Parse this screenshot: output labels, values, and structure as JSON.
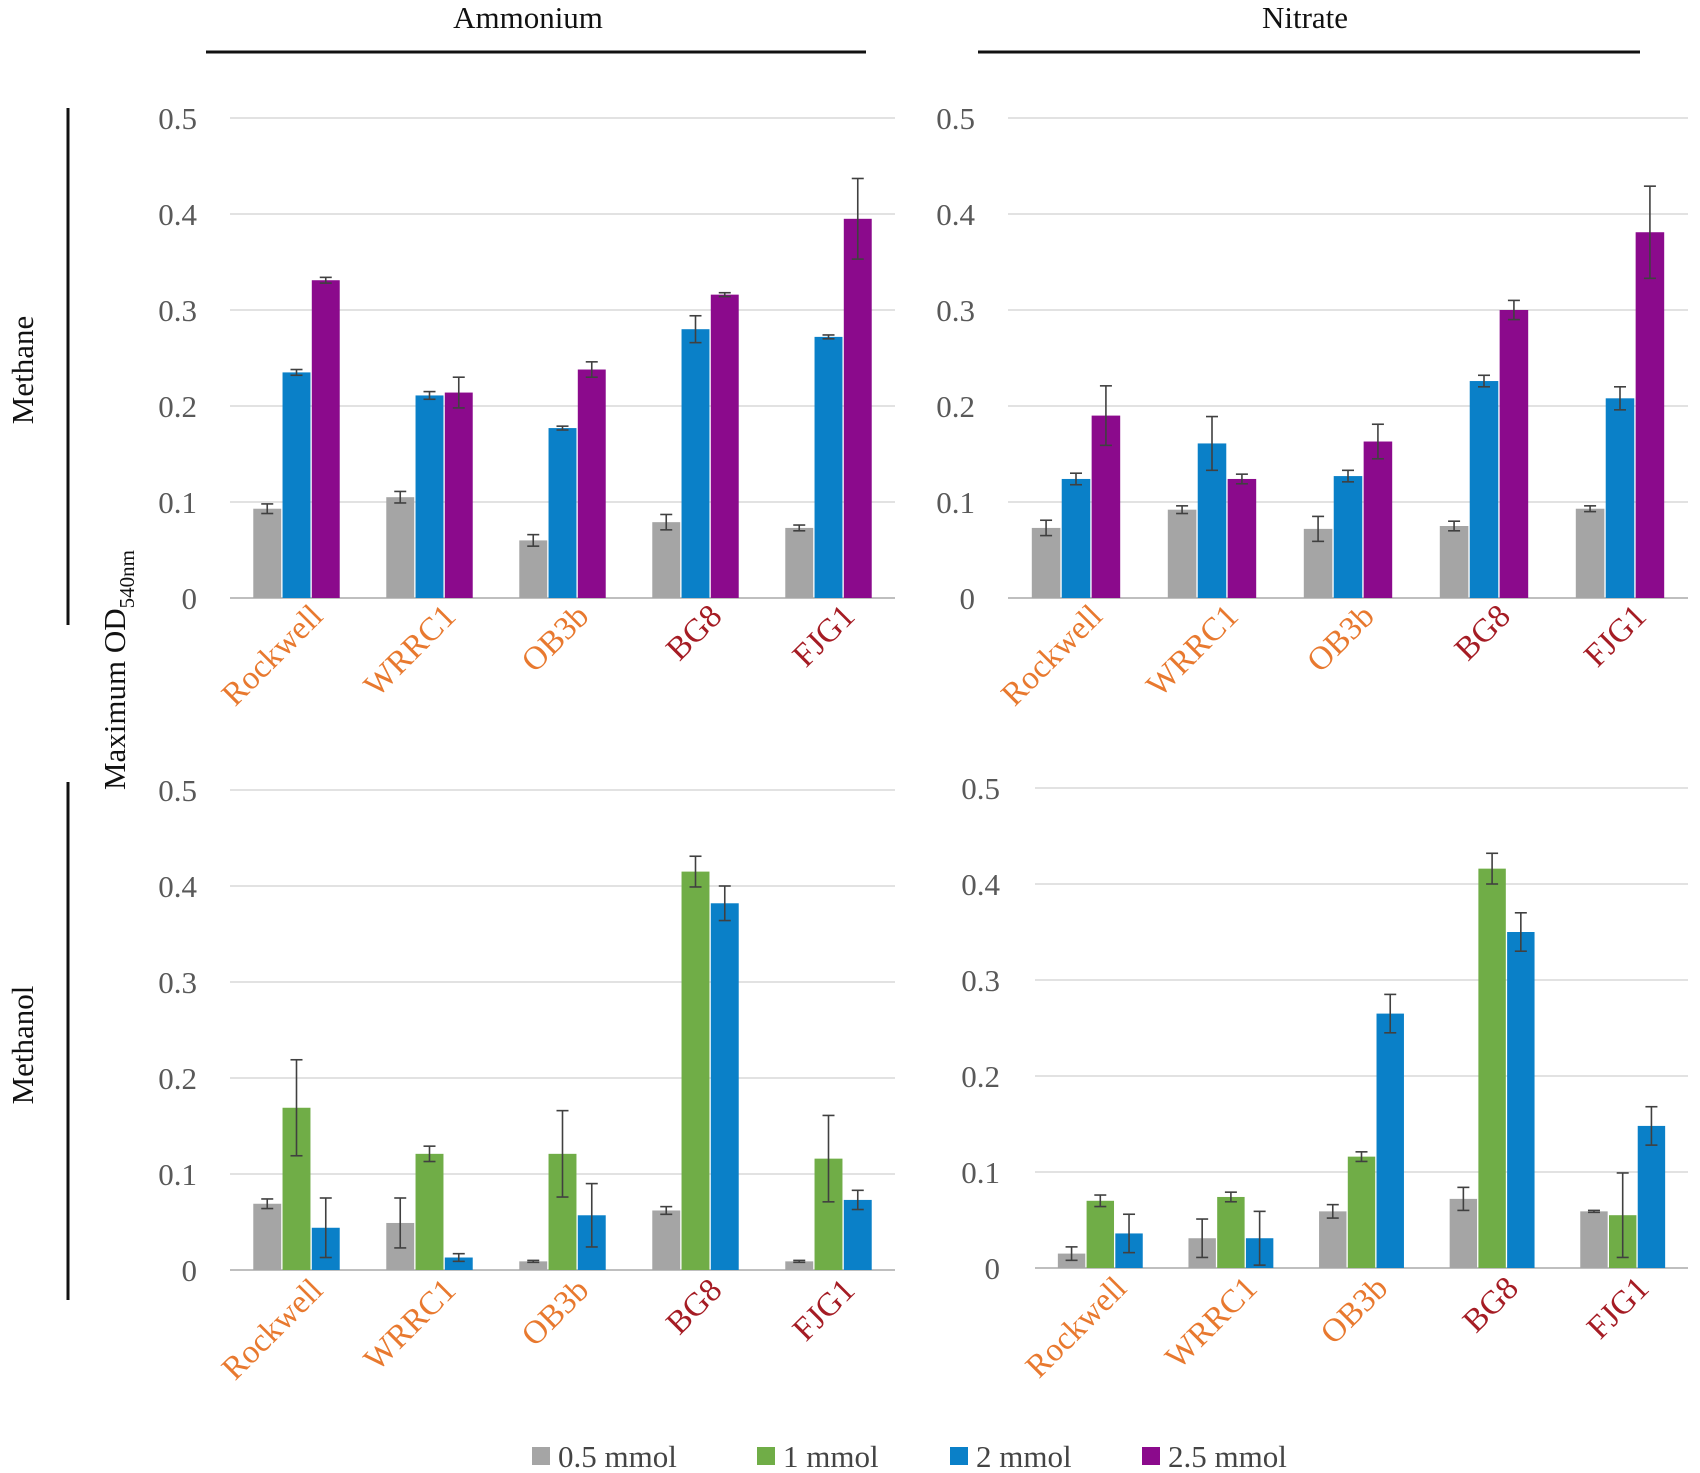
{
  "figure": {
    "col_titles": [
      "Ammonium",
      "Nitrate"
    ],
    "row_titles": [
      "Methane",
      "Methanol"
    ],
    "ylabel": {
      "main": "Maximum  OD",
      "sub": "540nm"
    },
    "strain_colors": {
      "Rockwell": "#E8792F",
      "WRRC1": "#E8792F",
      "OB3b": "#E8792F",
      "BG8": "#A51C24",
      "FJG1": "#A51C24"
    },
    "legend": [
      {
        "label": "0.5 mmol",
        "color": "#A5A5A5"
      },
      {
        "label": "1 mmol",
        "color": "#70AD47"
      },
      {
        "label": "2 mmol",
        "color": "#0A80C8"
      },
      {
        "label": "2.5 mmol",
        "color": "#8B0A8C"
      }
    ]
  },
  "chart_data": [
    {
      "id": "methane-ammonium",
      "type": "bar",
      "title": "Ammonium",
      "row": "Methane",
      "categories": [
        "Rockwell",
        "WRRC1",
        "OB3b",
        "BG8",
        "FJG1"
      ],
      "ylim": [
        0,
        0.5
      ],
      "yticks": [
        "0",
        "0.1",
        "0.2",
        "0.3",
        "0.4",
        "0.5"
      ],
      "grid": true,
      "series": [
        {
          "name": "0.5 mmol",
          "color": "#A5A5A5",
          "values": [
            0.093,
            0.105,
            0.06,
            0.079,
            0.073
          ],
          "errors": [
            0.005,
            0.006,
            0.006,
            0.008,
            0.003
          ]
        },
        {
          "name": "2 mmol",
          "color": "#0A80C8",
          "values": [
            0.235,
            0.211,
            0.177,
            0.28,
            0.272
          ],
          "errors": [
            0.003,
            0.004,
            0.002,
            0.014,
            0.002
          ]
        },
        {
          "name": "2.5 mmol",
          "color": "#8B0A8C",
          "values": [
            0.331,
            0.214,
            0.238,
            0.316,
            0.395
          ],
          "errors": [
            0.003,
            0.016,
            0.008,
            0.002,
            0.042
          ]
        }
      ]
    },
    {
      "id": "methane-nitrate",
      "type": "bar",
      "title": "Nitrate",
      "row": "Methane",
      "categories": [
        "Rockwell",
        "WRRC1",
        "OB3b",
        "BG8",
        "FJG1"
      ],
      "ylim": [
        0,
        0.5
      ],
      "yticks": [
        "0",
        "0.1",
        "0.2",
        "0.3",
        "0.4",
        "0.5"
      ],
      "grid": true,
      "series": [
        {
          "name": "0.5 mmol",
          "color": "#A5A5A5",
          "values": [
            0.073,
            0.092,
            0.072,
            0.075,
            0.093
          ],
          "errors": [
            0.008,
            0.004,
            0.013,
            0.005,
            0.003
          ]
        },
        {
          "name": "2 mmol",
          "color": "#0A80C8",
          "values": [
            0.124,
            0.161,
            0.127,
            0.226,
            0.208
          ],
          "errors": [
            0.006,
            0.028,
            0.006,
            0.006,
            0.012
          ]
        },
        {
          "name": "2.5 mmol",
          "color": "#8B0A8C",
          "values": [
            0.19,
            0.124,
            0.163,
            0.3,
            0.381
          ],
          "errors": [
            0.031,
            0.005,
            0.018,
            0.01,
            0.048
          ]
        }
      ]
    },
    {
      "id": "methanol-ammonium",
      "type": "bar",
      "title": "Ammonium",
      "row": "Methanol",
      "categories": [
        "Rockwell",
        "WRRC1",
        "OB3b",
        "BG8",
        "FJG1"
      ],
      "ylim": [
        0,
        0.5
      ],
      "yticks": [
        "0",
        "0.1",
        "0.2",
        "0.3",
        "0.4",
        "0.5"
      ],
      "grid": true,
      "series": [
        {
          "name": "0.5 mmol",
          "color": "#A5A5A5",
          "values": [
            0.069,
            0.049,
            0.009,
            0.062,
            0.009
          ],
          "errors": [
            0.005,
            0.026,
            0.001,
            0.004,
            0.001
          ]
        },
        {
          "name": "1 mmol",
          "color": "#70AD47",
          "values": [
            0.169,
            0.121,
            0.121,
            0.415,
            0.116
          ],
          "errors": [
            0.05,
            0.008,
            0.045,
            0.016,
            0.045
          ]
        },
        {
          "name": "2 mmol",
          "color": "#0A80C8",
          "values": [
            0.044,
            0.013,
            0.057,
            0.382,
            0.073
          ],
          "errors": [
            0.031,
            0.004,
            0.033,
            0.018,
            0.01
          ]
        }
      ]
    },
    {
      "id": "methanol-nitrate",
      "type": "bar",
      "title": "Nitrate",
      "row": "Methanol",
      "categories": [
        "Rockwell",
        "WRRC1",
        "OB3b",
        "BG8",
        "FJG1"
      ],
      "ylim": [
        0,
        0.5
      ],
      "yticks": [
        "0",
        "0.1",
        "0.2",
        "0.3",
        "0.4",
        "0.5"
      ],
      "grid": true,
      "series": [
        {
          "name": "0.5 mmol",
          "color": "#A5A5A5",
          "values": [
            0.015,
            0.031,
            0.059,
            0.072,
            0.059
          ],
          "errors": [
            0.007,
            0.02,
            0.007,
            0.012,
            0.001
          ]
        },
        {
          "name": "1 mmol",
          "color": "#70AD47",
          "values": [
            0.07,
            0.074,
            0.116,
            0.416,
            0.055
          ],
          "errors": [
            0.006,
            0.005,
            0.005,
            0.016,
            0.044
          ]
        },
        {
          "name": "2 mmol",
          "color": "#0A80C8",
          "values": [
            0.036,
            0.031,
            0.265,
            0.35,
            0.148
          ],
          "errors": [
            0.02,
            0.028,
            0.02,
            0.02,
            0.02
          ]
        }
      ]
    }
  ]
}
